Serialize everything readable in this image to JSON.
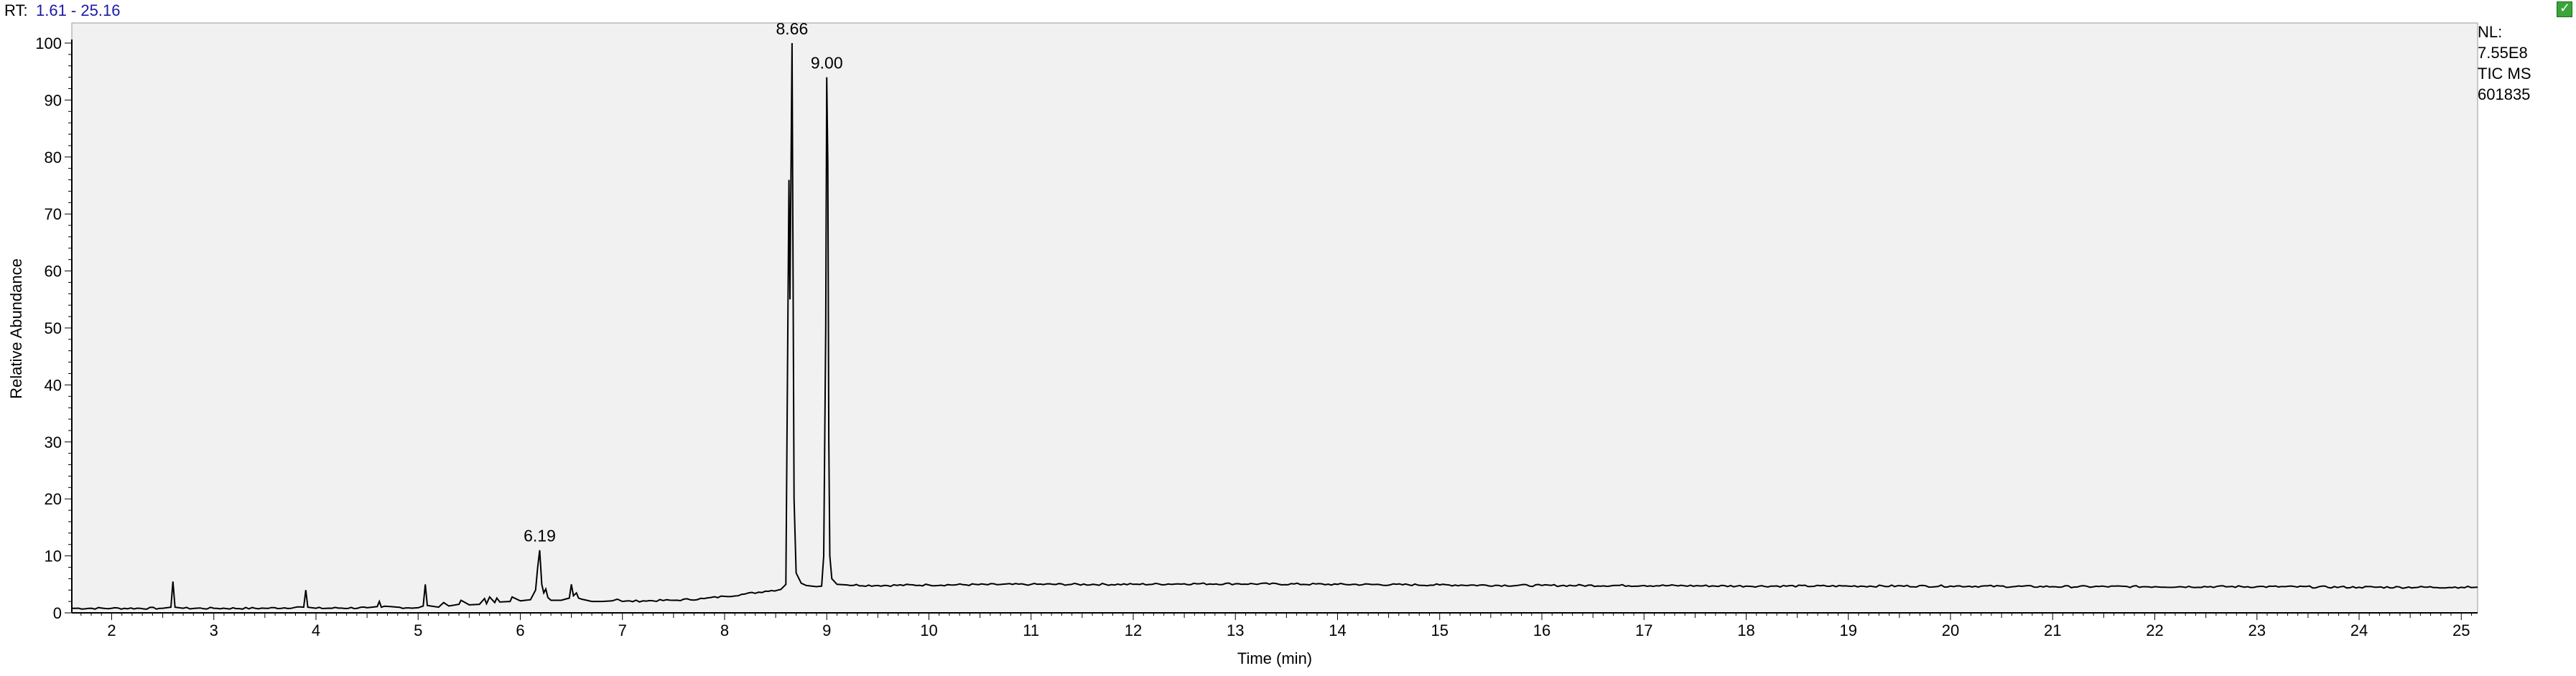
{
  "header": {
    "rt_prefix": "RT:",
    "rt_range": "1.61 - 25.16",
    "corner_icon": "check-icon"
  },
  "info_box": {
    "nl_label": "NL:",
    "nl_value": "7.55E8",
    "scan_filter": "TIC  MS",
    "sample_name": "601835"
  },
  "colors": {
    "plot_background": "#f1f1f1",
    "trace": "#000000",
    "rt_range_text": "#1a1aa8",
    "corner_button": "#3aa53a"
  },
  "chart_data": {
    "type": "line",
    "title": "",
    "xlabel": "Time (min)",
    "ylabel": "Relative Abundance",
    "xlim": [
      1.61,
      25.16
    ],
    "ylim": [
      0,
      100
    ],
    "xticks": [
      2,
      3,
      4,
      5,
      6,
      7,
      8,
      9,
      10,
      11,
      12,
      13,
      14,
      15,
      16,
      17,
      18,
      19,
      20,
      21,
      22,
      23,
      24,
      25
    ],
    "yticks": [
      0,
      10,
      20,
      30,
      40,
      50,
      60,
      70,
      80,
      90,
      100
    ],
    "grid": false,
    "legend": "none",
    "peak_labels": [
      {
        "x": 6.19,
        "y": 11,
        "text": "6.19"
      },
      {
        "x": 8.66,
        "y": 100,
        "text": "8.66"
      },
      {
        "x": 9.0,
        "y": 94,
        "text": "9.00"
      }
    ],
    "series": [
      {
        "x": [
          1.61,
          2.0,
          2.5,
          2.58,
          2.6,
          2.62,
          2.7,
          3.0,
          3.5,
          3.88,
          3.9,
          3.92,
          4.0,
          4.5,
          4.6,
          4.62,
          4.64,
          5.0,
          5.05,
          5.07,
          5.09,
          5.2,
          5.25,
          5.3,
          5.4,
          5.42,
          5.5,
          5.6,
          5.65,
          5.67,
          5.7,
          5.75,
          5.77,
          5.8,
          5.9,
          5.92,
          6.0,
          6.1,
          6.15,
          6.17,
          6.19,
          6.21,
          6.23,
          6.25,
          6.27,
          6.3,
          6.4,
          6.48,
          6.5,
          6.52,
          6.55,
          6.57,
          6.6,
          6.7,
          6.8,
          6.9,
          6.95,
          7.0,
          7.2,
          7.5,
          7.8,
          8.0,
          8.2,
          8.4,
          8.55,
          8.6,
          8.63,
          8.64,
          8.66,
          8.67,
          8.68,
          8.7,
          8.75,
          8.8,
          8.9,
          8.95,
          8.97,
          8.99,
          9.0,
          9.01,
          9.02,
          9.03,
          9.05,
          9.1,
          9.2,
          9.5,
          10.0,
          11.0,
          12.0,
          12.5,
          13.0,
          14.0,
          15.0,
          16.0,
          17.0,
          18.0,
          19.0,
          20.0,
          21.0,
          22.0,
          23.0,
          24.0,
          25.0,
          25.16
        ],
        "y": [
          0.8,
          0.8,
          0.8,
          1.0,
          5.5,
          1.0,
          0.8,
          0.8,
          0.8,
          1.0,
          4.0,
          1.0,
          0.8,
          0.9,
          1.1,
          2.0,
          1.0,
          0.9,
          1.2,
          5.0,
          1.3,
          1.0,
          1.8,
          1.2,
          1.5,
          2.2,
          1.4,
          1.5,
          2.5,
          1.6,
          2.8,
          1.8,
          2.6,
          1.9,
          2.0,
          2.8,
          2.1,
          2.3,
          4.0,
          8.0,
          11.0,
          5.0,
          3.5,
          4.2,
          2.7,
          2.2,
          2.2,
          2.6,
          5.0,
          3.0,
          3.5,
          2.6,
          2.4,
          2.0,
          2.0,
          2.1,
          2.4,
          2.0,
          2.1,
          2.2,
          2.5,
          2.9,
          3.3,
          3.8,
          4.1,
          5.0,
          76.0,
          55.0,
          100.0,
          60.0,
          20.0,
          7.0,
          5.2,
          4.8,
          4.6,
          4.7,
          10.0,
          50.0,
          94.0,
          79.0,
          30.0,
          10.0,
          6.0,
          5.0,
          4.9,
          4.8,
          4.9,
          5.0,
          5.0,
          5.1,
          5.1,
          5.0,
          4.9,
          4.8,
          4.8,
          4.7,
          4.7,
          4.7,
          4.6,
          4.6,
          4.6,
          4.5,
          4.5,
          4.5
        ]
      }
    ]
  }
}
